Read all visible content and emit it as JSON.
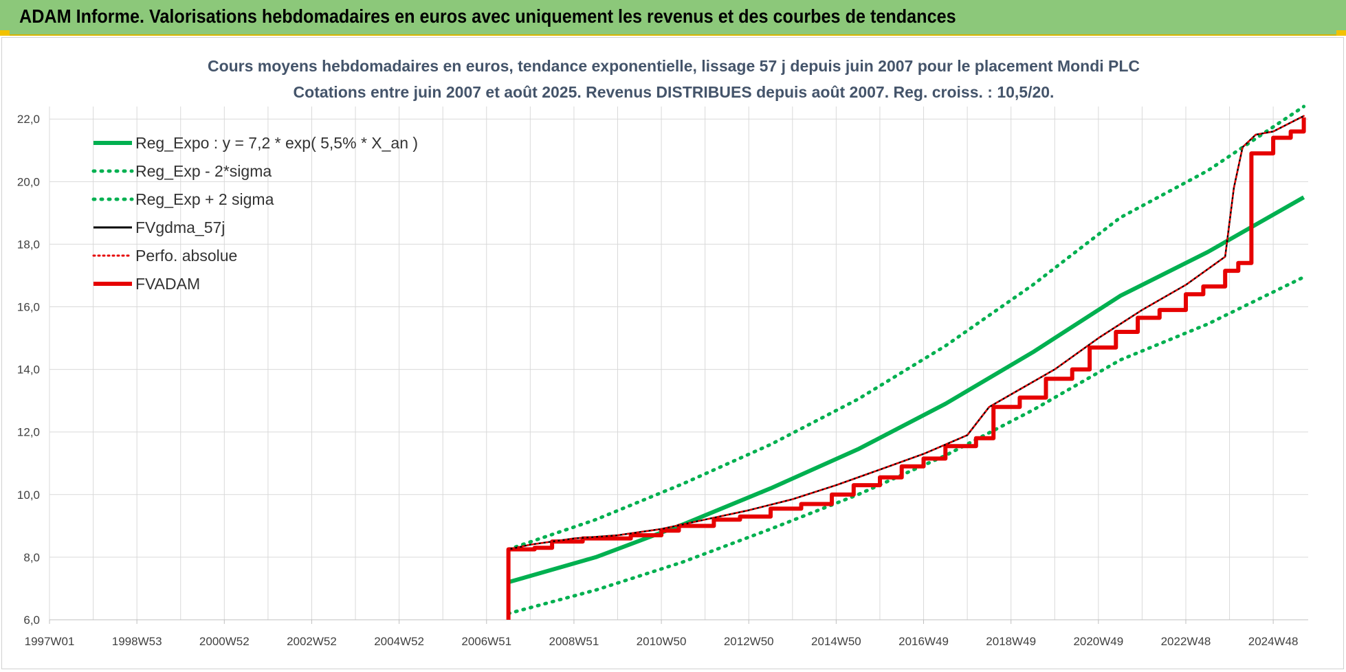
{
  "header": {
    "title": "ADAM Informe. Valorisations hebdomadaires en euros avec uniquement les revenus et des courbes de tendances"
  },
  "colors": {
    "banner": "#8cc87a",
    "green": "#00b050",
    "red": "#e60000",
    "black": "#000000",
    "grid": "#d9d9d9"
  },
  "chart_data": {
    "type": "line",
    "title": "Cours moyens hebdomadaires en euros, tendance exponentielle, lissage 57 j depuis juin 2007 pour le placement Mondi PLC",
    "subtitle": "Cotations entre juin 2007 et août 2025. Revenus DISTRIBUES depuis août 2007. Reg. croiss. : 10,5/20.",
    "x_tick_labels": [
      "1997W01",
      "1998W53",
      "2000W52",
      "2002W52",
      "2004W52",
      "2006W51",
      "2008W51",
      "2010W50",
      "2012W50",
      "2014W50",
      "2016W49",
      "2018W49",
      "2020W49",
      "2022W48",
      "2024W48"
    ],
    "y_tick_labels": [
      "6,0",
      "8,0",
      "10,0",
      "12,0",
      "14,0",
      "16,0",
      "18,0",
      "20,0",
      "22,0"
    ],
    "xlim": [
      1997.0,
      2025.8
    ],
    "ylim": [
      6.0,
      22.4
    ],
    "grid": true,
    "legend_position": "top-left",
    "legend": [
      "Reg_Expo : y = 7,2 * exp( 5,5% *  X_an )",
      "Reg_Exp - 2*sigma",
      "Reg_Exp + 2 sigma",
      "FVgdma_57j",
      "Perfo. absolue",
      "FVADAM"
    ],
    "series": [
      {
        "name": "Reg_Expo : y = 7,2 * exp( 5,5% *  X_an )",
        "color": "#00b050",
        "style": "solid",
        "x": [
          2007.5,
          2009.5,
          2011.5,
          2013.5,
          2015.5,
          2017.5,
          2019.5,
          2021.5,
          2023.5,
          2025.7
        ],
        "y": [
          7.2,
          8.0,
          9.05,
          10.2,
          11.45,
          12.9,
          14.55,
          16.35,
          17.75,
          19.5
        ]
      },
      {
        "name": "Reg_Exp - 2*sigma",
        "color": "#00b050",
        "style": "dotted",
        "x": [
          2007.5,
          2009.5,
          2011.5,
          2013.5,
          2015.5,
          2017.5,
          2019.5,
          2021.5,
          2023.5,
          2025.7
        ],
        "y": [
          6.2,
          6.95,
          7.85,
          8.9,
          10.0,
          11.25,
          12.7,
          14.3,
          15.45,
          16.95
        ]
      },
      {
        "name": "Reg_Exp + 2 sigma",
        "color": "#00b050",
        "style": "dotted",
        "x": [
          2007.5,
          2009.5,
          2011.5,
          2013.5,
          2015.5,
          2017.5,
          2019.5,
          2021.5,
          2023.5,
          2025.7
        ],
        "y": [
          8.25,
          9.2,
          10.35,
          11.6,
          13.05,
          14.75,
          16.7,
          18.85,
          20.35,
          22.4
        ]
      },
      {
        "name": "FVgdma_57j",
        "color": "#000000",
        "style": "solid",
        "x": [
          2007.5,
          2008.0,
          2009.0,
          2010.0,
          2011.0,
          2012.0,
          2013.0,
          2014.0,
          2015.0,
          2016.0,
          2017.0,
          2018.0,
          2018.5,
          2019.0,
          2020.0,
          2021.0,
          2022.0,
          2023.0,
          2023.9,
          2024.1,
          2024.3,
          2024.6,
          2025.0,
          2025.7
        ],
        "y": [
          8.25,
          8.4,
          8.6,
          8.7,
          8.9,
          9.2,
          9.5,
          9.85,
          10.3,
          10.8,
          11.3,
          11.9,
          12.8,
          13.2,
          14.0,
          15.0,
          15.9,
          16.7,
          17.6,
          19.8,
          21.1,
          21.5,
          21.6,
          22.1
        ]
      },
      {
        "name": "Perfo. absolue",
        "color": "#e60000",
        "style": "dotted",
        "x": [
          2007.5,
          2008.0,
          2009.0,
          2010.0,
          2011.0,
          2012.0,
          2013.0,
          2014.0,
          2015.0,
          2016.0,
          2017.0,
          2018.0,
          2018.5,
          2019.0,
          2020.0,
          2021.0,
          2022.0,
          2023.0,
          2023.9,
          2024.1,
          2024.3,
          2024.6,
          2025.0,
          2025.7
        ],
        "y": [
          8.25,
          8.4,
          8.6,
          8.7,
          8.9,
          9.2,
          9.5,
          9.85,
          10.3,
          10.8,
          11.3,
          11.9,
          12.8,
          13.2,
          14.0,
          15.0,
          15.9,
          16.7,
          17.6,
          19.8,
          21.1,
          21.5,
          21.6,
          22.1
        ]
      },
      {
        "name": "FVADAM",
        "color": "#e60000",
        "style": "step",
        "x": [
          2007.5,
          2007.5,
          2008.1,
          2008.5,
          2009.2,
          2010.3,
          2011.0,
          2011.4,
          2012.2,
          2012.8,
          2013.5,
          2014.2,
          2014.9,
          2015.4,
          2016.0,
          2016.5,
          2017.0,
          2017.5,
          2018.2,
          2018.6,
          2019.2,
          2019.8,
          2020.4,
          2020.8,
          2021.4,
          2021.9,
          2022.4,
          2023.0,
          2023.4,
          2023.9,
          2024.2,
          2024.5,
          2025.0,
          2025.4,
          2025.7
        ],
        "y": [
          6.0,
          8.25,
          8.3,
          8.5,
          8.6,
          8.7,
          8.85,
          9.0,
          9.2,
          9.3,
          9.55,
          9.7,
          10.0,
          10.3,
          10.55,
          10.9,
          11.15,
          11.55,
          11.8,
          12.8,
          13.1,
          13.7,
          14.0,
          14.7,
          15.2,
          15.65,
          15.9,
          16.4,
          16.65,
          17.15,
          17.4,
          20.9,
          21.4,
          21.6,
          22.05
        ]
      }
    ]
  }
}
